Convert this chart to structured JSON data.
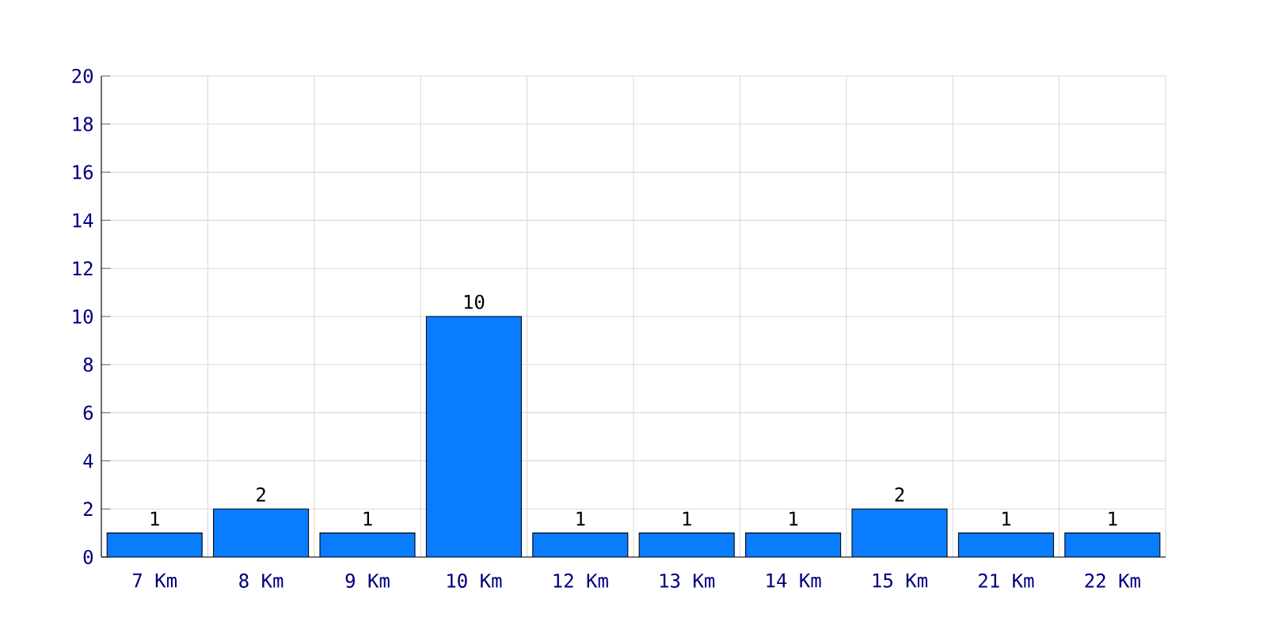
{
  "chart_data": {
    "type": "bar",
    "categories": [
      "7 Km",
      "8 Km",
      "9 Km",
      "10 Km",
      "12 Km",
      "13 Km",
      "14 Km",
      "15 Km",
      "21 Km",
      "22 Km"
    ],
    "values": [
      1,
      2,
      1,
      10,
      1,
      1,
      1,
      2,
      1,
      1
    ],
    "color": "#0a7cff",
    "ylim": [
      0,
      20
    ],
    "yticks": [
      0,
      2,
      4,
      6,
      8,
      10,
      12,
      14,
      16,
      18,
      20
    ],
    "grid": true,
    "data_labels": true
  }
}
